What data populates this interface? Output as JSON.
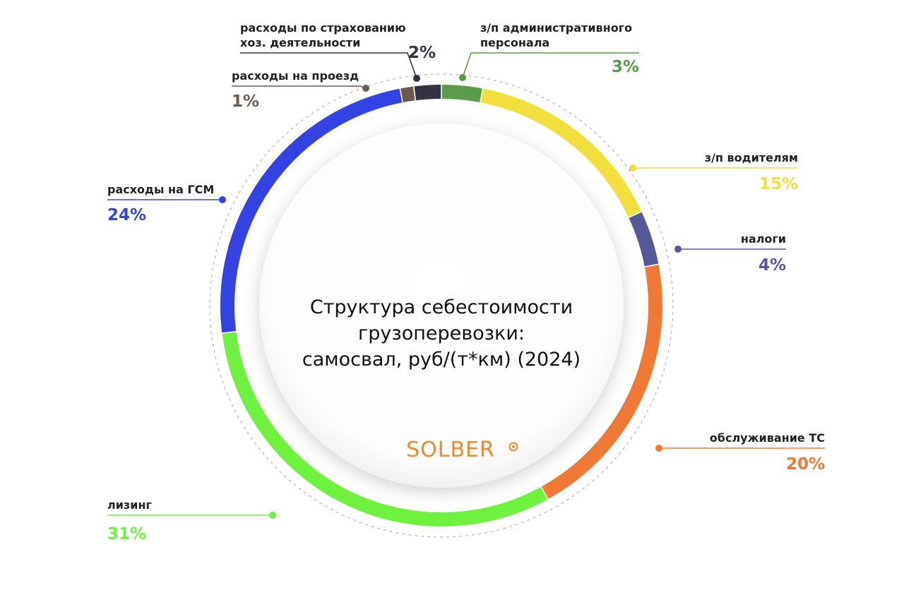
{
  "chart_data": {
    "type": "pie",
    "title": "Структура себестоимости грузоперевозки: самосвал, руб/(т*км) (2024)",
    "title_lines": [
      "Структура себестоимости",
      "грузоперевозки:",
      "самосвал, руб/(т*км) (2024)"
    ],
    "logo": "SOLBER",
    "logo_color": "#f08a2c",
    "slices": [
      {
        "label_lines": [
          "з/п административного",
          "персонала"
        ],
        "value": 3,
        "display": "3%",
        "color": "#5a9c47"
      },
      {
        "label_lines": [
          "з/п водителям"
        ],
        "value": 15,
        "display": "15%",
        "color": "#f3df3c"
      },
      {
        "label_lines": [
          "налоги"
        ],
        "value": 4,
        "display": "4%",
        "color": "#55599a"
      },
      {
        "label_lines": [
          "обслуживание ТС"
        ],
        "value": 20,
        "display": "20%",
        "color": "#f07a35"
      },
      {
        "label_lines": [
          "лизинг"
        ],
        "value": 31,
        "display": "31%",
        "color": "#6ef23d"
      },
      {
        "label_lines": [
          "расходы на ГСМ"
        ],
        "value": 24,
        "display": "24%",
        "color": "#3342e2"
      },
      {
        "label_lines": [
          "расходы на проезд"
        ],
        "value": 1,
        "display": "1%",
        "color": "#6e5a4d"
      },
      {
        "label_lines": [
          "расходы по страхованию",
          "хоз. деятельности"
        ],
        "value": 2,
        "display": "2%",
        "color": "#333344"
      }
    ]
  }
}
